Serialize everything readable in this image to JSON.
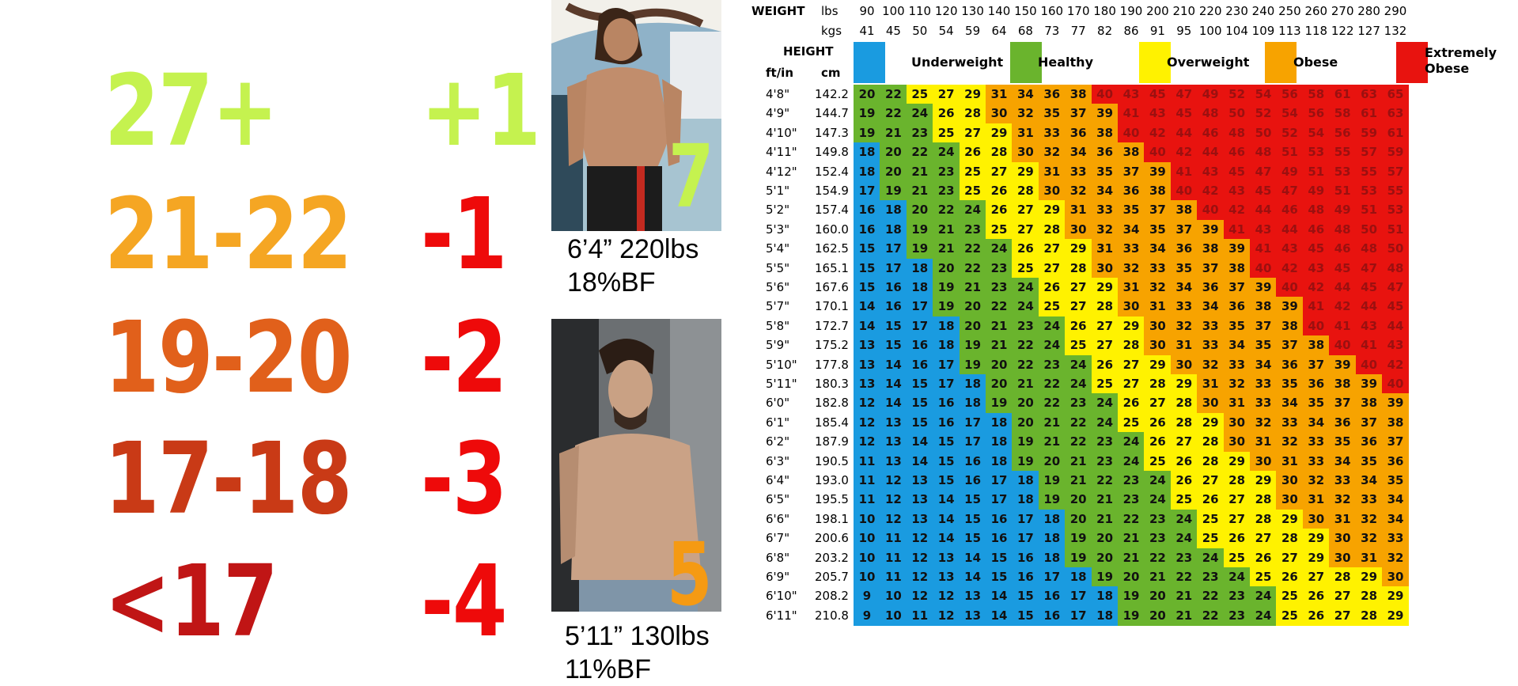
{
  "score_rows": [
    {
      "range": "27+",
      "score": "+1",
      "range_color": "#c5f24f",
      "score_color": "#c5f24f"
    },
    {
      "range": "21-22",
      "score": "-1",
      "range_color": "#f5a623",
      "score_color": "#ee0a0a"
    },
    {
      "range": "19-20",
      "score": "-2",
      "range_color": "#e1601b",
      "score_color": "#ee0a0a"
    },
    {
      "range": "17-18",
      "score": "-3",
      "range_color": "#c93a16",
      "score_color": "#ee0a0a"
    },
    {
      "range": "<17",
      "score": "-4",
      "range_color": "#c01515",
      "score_color": "#ee0a0a"
    }
  ],
  "photos": [
    {
      "number": "7",
      "number_color": "#c5f24f",
      "caption_line1": "6’4” 220lbs",
      "caption_line2": "18%BF"
    },
    {
      "number": "5",
      "number_color": "#f59a13",
      "caption_line1": "5’11” 130lbs",
      "caption_line2": "11%BF"
    }
  ],
  "bmi_chart": {
    "weight_label": "WEIGHT",
    "lbs_label": "lbs",
    "kgs_label": "kgs",
    "height_label": "HEIGHT",
    "ftin_label": "ft/in",
    "cm_label": "cm",
    "lbs": [
      "90",
      "100",
      "110",
      "120",
      "130",
      "140",
      "150",
      "160",
      "170",
      "180",
      "190",
      "200",
      "210",
      "220",
      "230",
      "240",
      "250",
      "260",
      "270",
      "280",
      "290"
    ],
    "kgs": [
      "41",
      "45",
      "50",
      "54",
      "59",
      "64",
      "68",
      "73",
      "77",
      "82",
      "86",
      "91",
      "95",
      "100",
      "104",
      "109",
      "113",
      "118",
      "122",
      "127",
      "132"
    ],
    "legend": [
      {
        "label": "Underweight",
        "color": "#1a9be0"
      },
      {
        "label": "Healthy",
        "color": "#6ab42d"
      },
      {
        "label": "Overweight",
        "color": "#fff200"
      },
      {
        "label": "Obese",
        "color": "#f7a300"
      },
      {
        "label": "Extremely Obese",
        "color": "#e8130f"
      }
    ],
    "category_colors": {
      "under": "#1a9be0",
      "healthy": "#6ab42d",
      "over": "#fff200",
      "obese": "#f7a300",
      "extreme": "#e8130f"
    },
    "rows": [
      {
        "ft": "4'8\"",
        "cm": "142.2",
        "bmi": [
          20,
          22,
          25,
          27,
          29,
          31,
          34,
          36,
          38,
          40,
          43,
          45,
          47,
          49,
          52,
          54,
          56,
          58,
          61,
          63,
          65
        ]
      },
      {
        "ft": "4'9\"",
        "cm": "144.7",
        "bmi": [
          19,
          22,
          24,
          26,
          28,
          30,
          32,
          35,
          37,
          39,
          41,
          43,
          45,
          48,
          50,
          52,
          54,
          56,
          58,
          61,
          63
        ]
      },
      {
        "ft": "4'10\"",
        "cm": "147.3",
        "bmi": [
          19,
          21,
          23,
          25,
          27,
          29,
          31,
          33,
          36,
          38,
          40,
          42,
          44,
          46,
          48,
          50,
          52,
          54,
          56,
          59,
          61
        ]
      },
      {
        "ft": "4'11\"",
        "cm": "149.8",
        "bmi": [
          18,
          20,
          22,
          24,
          26,
          28,
          30,
          32,
          34,
          36,
          38,
          40,
          42,
          44,
          46,
          48,
          51,
          53,
          55,
          57,
          59
        ]
      },
      {
        "ft": "4'12\"",
        "cm": "152.4",
        "bmi": [
          18,
          20,
          21,
          23,
          25,
          27,
          29,
          31,
          33,
          35,
          37,
          39,
          41,
          43,
          45,
          47,
          49,
          51,
          53,
          55,
          57
        ]
      },
      {
        "ft": "5'1\"",
        "cm": "154.9",
        "bmi": [
          17,
          19,
          21,
          23,
          25,
          26,
          28,
          30,
          32,
          34,
          36,
          38,
          40,
          42,
          43,
          45,
          47,
          49,
          51,
          53,
          55
        ]
      },
      {
        "ft": "5'2\"",
        "cm": "157.4",
        "bmi": [
          16,
          18,
          20,
          22,
          24,
          26,
          27,
          29,
          31,
          33,
          35,
          37,
          38,
          40,
          42,
          44,
          46,
          48,
          49,
          51,
          53
        ]
      },
      {
        "ft": "5'3\"",
        "cm": "160.0",
        "bmi": [
          16,
          18,
          19,
          21,
          23,
          25,
          27,
          28,
          30,
          32,
          34,
          35,
          37,
          39,
          41,
          43,
          44,
          46,
          48,
          50,
          51
        ]
      },
      {
        "ft": "5'4\"",
        "cm": "162.5",
        "bmi": [
          15,
          17,
          19,
          21,
          22,
          24,
          26,
          27,
          29,
          31,
          33,
          34,
          36,
          38,
          39,
          41,
          43,
          45,
          46,
          48,
          50
        ]
      },
      {
        "ft": "5'5\"",
        "cm": "165.1",
        "bmi": [
          15,
          17,
          18,
          20,
          22,
          23,
          25,
          27,
          28,
          30,
          32,
          33,
          35,
          37,
          38,
          40,
          42,
          43,
          45,
          47,
          48
        ]
      },
      {
        "ft": "5'6\"",
        "cm": "167.6",
        "bmi": [
          15,
          16,
          18,
          19,
          21,
          23,
          24,
          26,
          27,
          29,
          31,
          32,
          34,
          36,
          37,
          39,
          40,
          42,
          44,
          45,
          47
        ]
      },
      {
        "ft": "5'7\"",
        "cm": "170.1",
        "bmi": [
          14,
          16,
          17,
          19,
          20,
          22,
          24,
          25,
          27,
          28,
          30,
          31,
          33,
          34,
          36,
          38,
          39,
          41,
          42,
          44,
          45
        ]
      },
      {
        "ft": "5'8\"",
        "cm": "172.7",
        "bmi": [
          14,
          15,
          17,
          18,
          20,
          21,
          23,
          24,
          26,
          27,
          29,
          30,
          32,
          33,
          35,
          37,
          38,
          40,
          41,
          43,
          44
        ]
      },
      {
        "ft": "5'9\"",
        "cm": "175.2",
        "bmi": [
          13,
          15,
          16,
          18,
          19,
          21,
          22,
          24,
          25,
          27,
          28,
          30,
          31,
          33,
          34,
          35,
          37,
          38,
          40,
          41,
          43
        ]
      },
      {
        "ft": "5'10\"",
        "cm": "177.8",
        "bmi": [
          13,
          14,
          16,
          17,
          19,
          20,
          22,
          23,
          24,
          26,
          27,
          29,
          30,
          32,
          33,
          34,
          36,
          37,
          39,
          40,
          42
        ]
      },
      {
        "ft": "5'11\"",
        "cm": "180.3",
        "bmi": [
          13,
          14,
          15,
          17,
          18,
          20,
          21,
          22,
          24,
          25,
          27,
          28,
          29,
          31,
          32,
          33,
          35,
          36,
          38,
          39,
          40
        ]
      },
      {
        "ft": "6'0\"",
        "cm": "182.8",
        "bmi": [
          12,
          14,
          15,
          16,
          18,
          19,
          20,
          22,
          23,
          24,
          26,
          27,
          28,
          30,
          31,
          33,
          34,
          35,
          37,
          38,
          39
        ]
      },
      {
        "ft": "6'1\"",
        "cm": "185.4",
        "bmi": [
          12,
          13,
          15,
          16,
          17,
          18,
          20,
          21,
          22,
          24,
          25,
          26,
          28,
          29,
          30,
          32,
          33,
          34,
          36,
          37,
          38
        ]
      },
      {
        "ft": "6'2\"",
        "cm": "187.9",
        "bmi": [
          12,
          13,
          14,
          15,
          17,
          18,
          19,
          21,
          22,
          23,
          24,
          26,
          27,
          28,
          30,
          31,
          32,
          33,
          35,
          36,
          37
        ]
      },
      {
        "ft": "6'3\"",
        "cm": "190.5",
        "bmi": [
          11,
          13,
          14,
          15,
          16,
          18,
          19,
          20,
          21,
          23,
          24,
          25,
          26,
          28,
          29,
          30,
          31,
          33,
          34,
          35,
          36
        ]
      },
      {
        "ft": "6'4\"",
        "cm": "193.0",
        "bmi": [
          11,
          12,
          13,
          15,
          16,
          17,
          18,
          19,
          21,
          22,
          23,
          24,
          26,
          27,
          28,
          29,
          30,
          32,
          33,
          34,
          35
        ]
      },
      {
        "ft": "6'5\"",
        "cm": "195.5",
        "bmi": [
          11,
          12,
          13,
          14,
          15,
          17,
          18,
          19,
          20,
          21,
          23,
          24,
          25,
          26,
          27,
          28,
          30,
          31,
          32,
          33,
          34
        ]
      },
      {
        "ft": "6'6\"",
        "cm": "198.1",
        "bmi": [
          10,
          12,
          13,
          14,
          15,
          16,
          17,
          18,
          20,
          21,
          22,
          23,
          24,
          25,
          27,
          28,
          29,
          30,
          31,
          32,
          34
        ]
      },
      {
        "ft": "6'7\"",
        "cm": "200.6",
        "bmi": [
          10,
          11,
          12,
          14,
          15,
          16,
          17,
          18,
          19,
          20,
          21,
          23,
          24,
          25,
          26,
          27,
          28,
          29,
          30,
          32,
          33
        ]
      },
      {
        "ft": "6'8\"",
        "cm": "203.2",
        "bmi": [
          10,
          11,
          12,
          13,
          14,
          15,
          16,
          18,
          19,
          20,
          21,
          22,
          23,
          24,
          25,
          26,
          27,
          29,
          30,
          31,
          32
        ]
      },
      {
        "ft": "6'9\"",
        "cm": "205.7",
        "bmi": [
          10,
          11,
          12,
          13,
          14,
          15,
          16,
          17,
          18,
          19,
          20,
          21,
          22,
          23,
          24,
          25,
          26,
          27,
          28,
          29,
          30
        ]
      },
      {
        "ft": "6'10\"",
        "cm": "208.2",
        "bmi": [
          9,
          10,
          12,
          12,
          13,
          14,
          15,
          16,
          17,
          18,
          19,
          20,
          21,
          22,
          23,
          24,
          25,
          26,
          27,
          28,
          29
        ]
      },
      {
        "ft": "6'11\"",
        "cm": "210.8",
        "bmi": [
          9,
          10,
          11,
          12,
          13,
          14,
          15,
          16,
          17,
          18,
          19,
          20,
          21,
          22,
          23,
          24,
          25,
          26,
          27,
          28,
          29
        ]
      }
    ]
  }
}
